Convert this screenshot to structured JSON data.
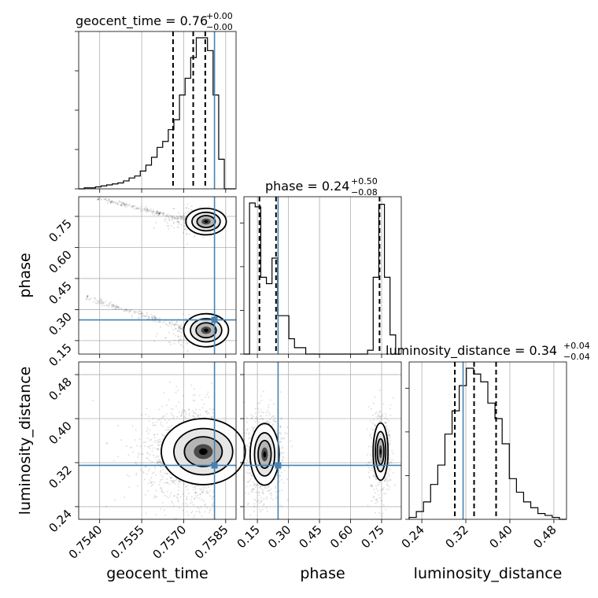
{
  "chart_data": {
    "type": "corner",
    "parameters": [
      "geocent_time",
      "phase",
      "luminosity_distance"
    ],
    "axis_labels": {
      "geocent_time": "geocent_time",
      "phase": "phase",
      "luminosity_distance": "luminosity_distance"
    },
    "ranges": {
      "geocent_time": [
        0.75325,
        0.75887
      ],
      "phase": [
        0.085,
        0.845
      ],
      "luminosity_distance": [
        0.217,
        0.503
      ]
    },
    "ticks": {
      "geocent_time": {
        "values": [
          0.754,
          0.7555,
          0.757,
          0.7585
        ],
        "labels": [
          "0.7540",
          "0.7555",
          "0.7570",
          "0.7585"
        ]
      },
      "phase": {
        "values": [
          0.15,
          0.3,
          0.45,
          0.6,
          0.75
        ],
        "labels": [
          "0.15",
          "0.30",
          "0.45",
          "0.60",
          "0.75"
        ]
      },
      "luminosity_distance": {
        "values": [
          0.24,
          0.32,
          0.4,
          0.48
        ],
        "labels": [
          "0.24",
          "0.32",
          "0.40",
          "0.48"
        ]
      }
    },
    "titles": [
      {
        "param": "geocent_time",
        "main": "geocent_time = 0.76",
        "upper": "+0.00",
        "lower": "−0.00"
      },
      {
        "param": "phase",
        "main": "phase = 0.24",
        "upper": "+0.50",
        "lower": "−0.08"
      },
      {
        "param": "luminosity_distance",
        "main": "luminosity_distance = 0.34",
        "upper": "+0.04",
        "lower": "−0.04"
      }
    ],
    "truths": {
      "geocent_time": 0.7581,
      "phase": 0.25,
      "luminosity_distance": 0.315
    },
    "quantiles": {
      "geocent_time": [
        0.75662,
        0.75734,
        0.75777
      ],
      "phase": [
        0.16,
        0.24,
        0.74
      ],
      "luminosity_distance": [
        0.3,
        0.335,
        0.375
      ]
    },
    "histograms": {
      "geocent_time": {
        "edges": [
          0.75325,
          0.75345,
          0.75365,
          0.75385,
          0.75405,
          0.75425,
          0.75445,
          0.75465,
          0.75485,
          0.75505,
          0.75525,
          0.75545,
          0.75565,
          0.75585,
          0.75605,
          0.75625,
          0.75645,
          0.75665,
          0.75685,
          0.75705,
          0.75725,
          0.75745,
          0.75765,
          0.75785,
          0.75805,
          0.75825,
          0.75845,
          0.75865,
          0.75885
        ],
        "counts": [
          0,
          1,
          1,
          2,
          3,
          4,
          5,
          6,
          8,
          11,
          13,
          18,
          24,
          32,
          42,
          48,
          60,
          70,
          95,
          112,
          133,
          153,
          153,
          140,
          95,
          30,
          0,
          0
        ]
      },
      "phase": {
        "edges": [
          0.085,
          0.11214,
          0.13929,
          0.16643,
          0.19357,
          0.22071,
          0.24786,
          0.275,
          0.30214,
          0.32929,
          0.35643,
          0.38357,
          0.41071,
          0.43786,
          0.465,
          0.49214,
          0.51929,
          0.54643,
          0.57357,
          0.60071,
          0.62786,
          0.655,
          0.68214,
          0.70929,
          0.73643,
          0.76357,
          0.79071,
          0.81786,
          0.845
        ],
        "counts": [
          0,
          118,
          115,
          60,
          55,
          75,
          30,
          30,
          12,
          5,
          5,
          0,
          0,
          0,
          0,
          0,
          0,
          0,
          0,
          0,
          0,
          0,
          3,
          60,
          117,
          60,
          15,
          0
        ]
      },
      "luminosity_distance": {
        "edges": [
          0.217,
          0.23,
          0.243,
          0.256,
          0.269,
          0.282,
          0.295,
          0.308,
          0.321,
          0.334,
          0.347,
          0.36,
          0.373,
          0.386,
          0.399,
          0.412,
          0.425,
          0.438,
          0.451,
          0.464,
          0.477,
          0.49,
          0.503
        ],
        "counts": [
          1,
          4,
          9,
          18,
          28,
          44,
          56,
          69,
          78,
          75,
          71,
          60,
          52,
          39,
          21,
          14,
          9,
          6,
          3,
          2,
          1,
          0
        ]
      }
    },
    "scatter_2d": {
      "phase_vs_geocent_time": "cloud of samples concentrated at geocent_time ~0.7573-0.7584 with phase modes near 0.17-0.21 and 0.70-0.75, diagonal streaks toward lower geocent_time",
      "luminosity_distance_vs_geocent_time": "broad cloud, density peak near geocent_time 0.7580, luminosity_distance 0.33",
      "luminosity_distance_vs_phase": "two clusters near phase 0.16 and 0.74, luminosity_distance ~0.32-0.36"
    },
    "grid": true
  }
}
